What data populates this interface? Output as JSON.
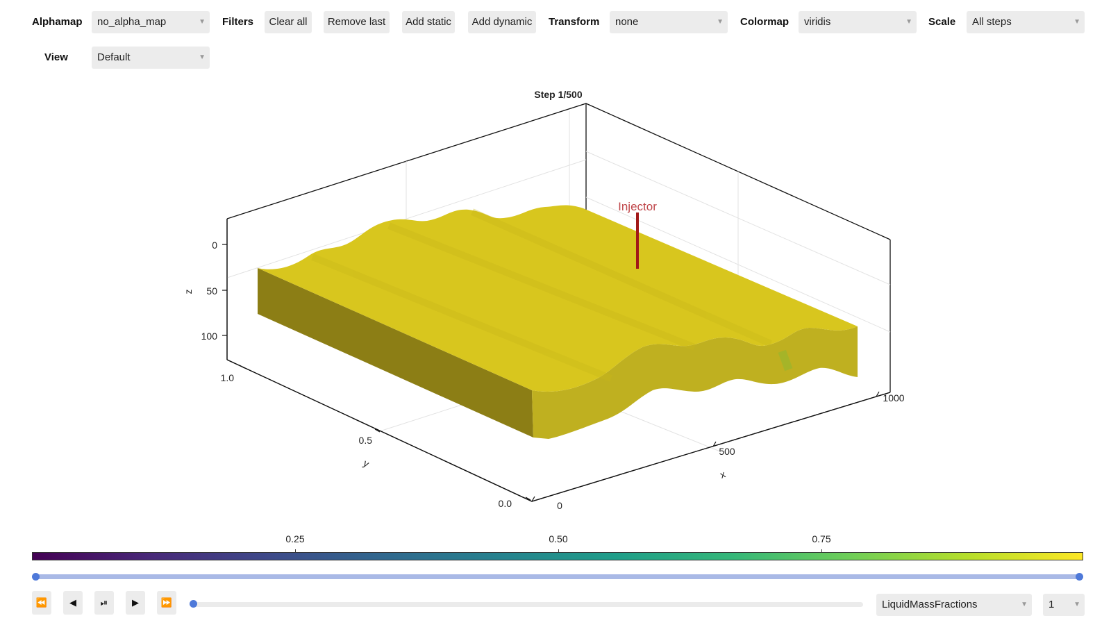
{
  "toolbar": {
    "alphamap_label": "Alphamap",
    "alphamap_value": "no_alpha_map",
    "filters_label": "Filters",
    "clear_all": "Clear all",
    "remove_last": "Remove last",
    "add_static": "Add static",
    "add_dynamic": "Add dynamic",
    "transform_label": "Transform",
    "transform_value": "none",
    "colormap_label": "Colormap",
    "colormap_value": "viridis",
    "scale_label": "Scale",
    "scale_value": "All steps",
    "view_label": "View",
    "view_value": "Default"
  },
  "plot": {
    "title": "Step 1/500",
    "annotation": "Injector",
    "z_label": "z",
    "y_label": "y",
    "x_label": "x",
    "z_ticks": [
      "0",
      "50",
      "100"
    ],
    "y_ticks": [
      "1.0",
      "0.5",
      "0.0"
    ],
    "x_ticks": [
      "0",
      "500",
      "1000"
    ],
    "colors": {
      "top": "#d8c61e",
      "front": "#bfb020",
      "left": "#8c7e15",
      "injector": "#a11818",
      "annotation": "#c0474b"
    }
  },
  "colorbar": {
    "ticks": [
      "0.25",
      "0.50",
      "0.75"
    ],
    "colormap": "viridis"
  },
  "range_slider": {
    "low": 0.0,
    "high": 1.0
  },
  "playback": {
    "rewind_icon": "⏪",
    "prev_icon": "◀",
    "playpause_icon": "⏯",
    "play_icon": "▶",
    "forward_icon": "⏩",
    "step_position": 0.0,
    "variable_value": "LiquidMassFractions",
    "step_value": "1"
  }
}
